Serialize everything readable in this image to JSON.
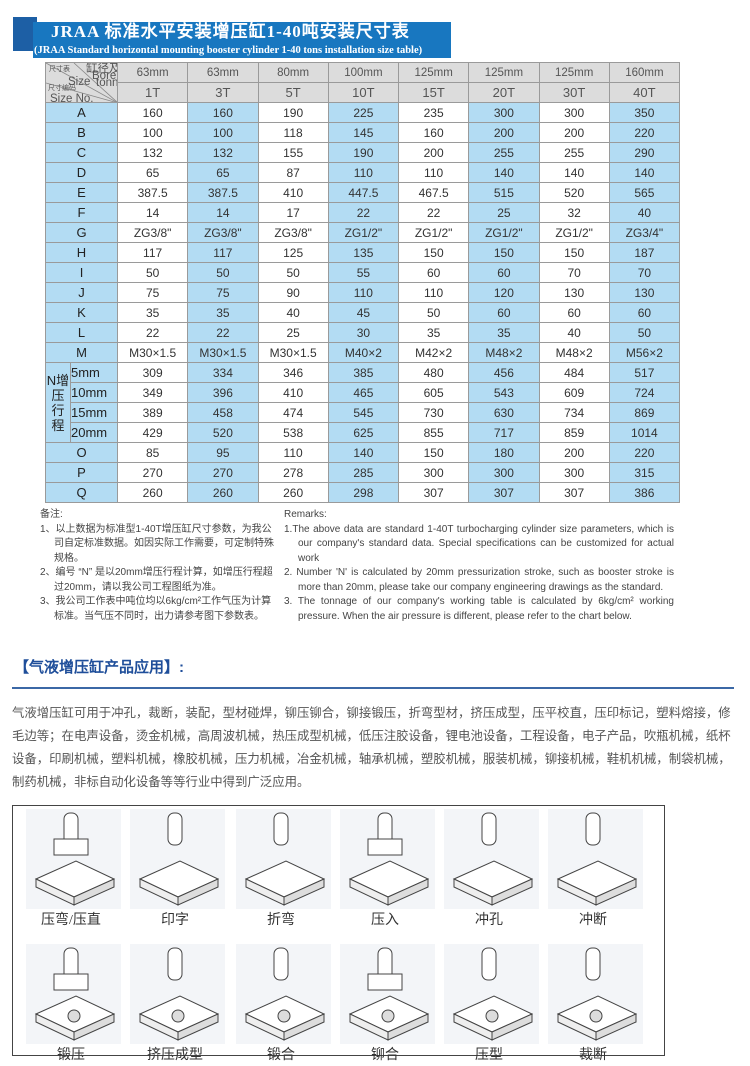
{
  "title": {
    "cn": "JRAA 标准水平安装增压缸1-40吨安装尺寸表",
    "en": "(JRAA Standard horizontal mounting booster cylinder 1-40 tons installation size table)"
  },
  "table": {
    "corner": {
      "a": "尺寸表",
      "b": "缸径及吨位",
      "c": "Bore and",
      "d": "tonnage",
      "e": "Size",
      "f": "尺寸编码",
      "g": "Size No."
    },
    "bores": [
      "63mm",
      "63mm",
      "80mm",
      "100mm",
      "125mm",
      "125mm",
      "125mm",
      "160mm"
    ],
    "tonnage": [
      "1T",
      "3T",
      "5T",
      "10T",
      "15T",
      "20T",
      "30T",
      "40T"
    ],
    "rows": [
      {
        "label": "A",
        "values": [
          "160",
          "160",
          "190",
          "225",
          "235",
          "300",
          "300",
          "350"
        ]
      },
      {
        "label": "B",
        "values": [
          "100",
          "100",
          "118",
          "145",
          "160",
          "200",
          "200",
          "220"
        ]
      },
      {
        "label": "C",
        "values": [
          "132",
          "132",
          "155",
          "190",
          "200",
          "255",
          "255",
          "290"
        ]
      },
      {
        "label": "D",
        "values": [
          "65",
          "65",
          "87",
          "110",
          "110",
          "140",
          "140",
          "140"
        ]
      },
      {
        "label": "E",
        "values": [
          "387.5",
          "387.5",
          "410",
          "447.5",
          "467.5",
          "515",
          "520",
          "565"
        ]
      },
      {
        "label": "F",
        "values": [
          "14",
          "14",
          "17",
          "22",
          "22",
          "25",
          "32",
          "40"
        ]
      },
      {
        "label": "G",
        "values": [
          "ZG3/8\"",
          "ZG3/8\"",
          "ZG3/8\"",
          "ZG1/2\"",
          "ZG1/2\"",
          "ZG1/2\"",
          "ZG1/2\"",
          "ZG3/4\""
        ]
      },
      {
        "label": "H",
        "values": [
          "117",
          "117",
          "125",
          "135",
          "150",
          "150",
          "150",
          "187"
        ]
      },
      {
        "label": "I",
        "values": [
          "50",
          "50",
          "50",
          "55",
          "60",
          "60",
          "70",
          "70"
        ]
      },
      {
        "label": "J",
        "values": [
          "75",
          "75",
          "90",
          "110",
          "110",
          "120",
          "130",
          "130"
        ]
      },
      {
        "label": "K",
        "values": [
          "35",
          "35",
          "40",
          "45",
          "50",
          "60",
          "60",
          "60"
        ]
      },
      {
        "label": "L",
        "values": [
          "22",
          "22",
          "25",
          "30",
          "35",
          "35",
          "40",
          "50"
        ]
      },
      {
        "label": "M",
        "values": [
          "M30×1.5",
          "M30×1.5",
          "M30×1.5",
          "M40×2",
          "M42×2",
          "M48×2",
          "M48×2",
          "M56×2"
        ]
      }
    ],
    "n_label": "N增压行程",
    "n_rows": [
      {
        "label": "5mm",
        "values": [
          "309",
          "334",
          "346",
          "385",
          "480",
          "456",
          "484",
          "517"
        ]
      },
      {
        "label": "10mm",
        "values": [
          "349",
          "396",
          "410",
          "465",
          "605",
          "543",
          "609",
          "724"
        ]
      },
      {
        "label": "15mm",
        "values": [
          "389",
          "458",
          "474",
          "545",
          "730",
          "630",
          "734",
          "869"
        ]
      },
      {
        "label": "20mm",
        "values": [
          "429",
          "520",
          "538",
          "625",
          "855",
          "717",
          "859",
          "1014"
        ]
      }
    ],
    "tail_rows": [
      {
        "label": "O",
        "values": [
          "85",
          "95",
          "110",
          "140",
          "150",
          "180",
          "200",
          "220"
        ]
      },
      {
        "label": "P",
        "values": [
          "270",
          "270",
          "278",
          "285",
          "300",
          "300",
          "300",
          "315"
        ]
      },
      {
        "label": "Q",
        "values": [
          "260",
          "260",
          "260",
          "298",
          "307",
          "307",
          "307",
          "386"
        ]
      }
    ]
  },
  "notes_cn": {
    "title": "备注:",
    "items": [
      "1、以上数据为标准型1-40T增压缸尺寸参数，为我公司自定标准数据。如因实际工作需要，可定制特殊规格。",
      "2、编号 “N” 是以20mm增压行程计算，如增压行程超过20mm，请以我公司工程图纸为准。",
      "3、我公司工作表中吨位均以6kg/cm²工作气压为计算标准。当气压不同时，出力请参考图下参数表。"
    ]
  },
  "notes_en": {
    "title": "Remarks:",
    "items": [
      "1.The above data are standard 1-40T turbocharging cylinder size parameters, which is our company's standard data. Special specifications can be customized for actual work",
      "2. Number 'N' is calculated by 20mm pressurization stroke, such as booster stroke is more than 20mm, please take our company engineering drawings as the standard.",
      "3. The tonnage of our company's working table is calculated by 6kg/cm² working pressure. When the air pressure is different, please refer to the chart below."
    ]
  },
  "application": {
    "title": "【气液增压缸产品应用】:",
    "text": "气液增压缸可用于冲孔，裁断，装配，型材碰焊，铆压铆合，铆接锻压，折弯型材，挤压成型，压平校直，压印标记，塑料熔接，修毛边等；在电声设备，烫金机械，高周波机械，热压成型机械，低压注胶设备，锂电池设备，工程设备，电子产品，吹瓶机械，纸杯设备，印刷机械，塑料机械，橡胶机械，压力机械，冶金机械，轴承机械，塑胶机械，服装机械，铆接机械，鞋机机械，制袋机械，制药机械，非标自动化设备等等行业中得到广泛应用。"
  },
  "processes": [
    "压弯/压直",
    "印字",
    "折弯",
    "压入",
    "冲孔",
    "冲断",
    "锻压",
    "挤压成型",
    "锻合",
    "铆合",
    "压型",
    "裁断"
  ],
  "colors": {
    "banner": "#1877c0",
    "highlight": "#b3dcf3",
    "header": "#dcdcdc",
    "section_title": "#1f4e9a"
  }
}
